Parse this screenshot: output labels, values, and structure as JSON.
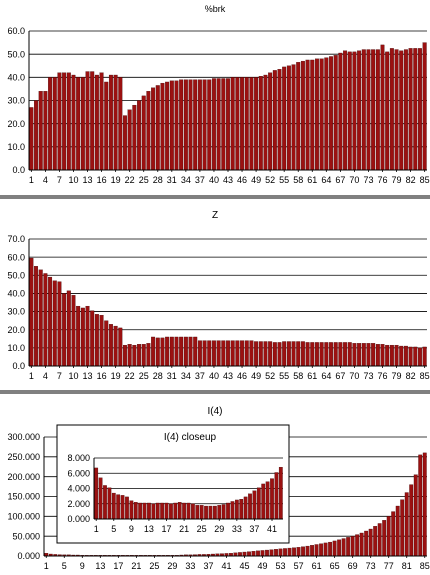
{
  "colors": {
    "bar": "#9b1111",
    "bar_edge": "#3a0000",
    "grid": "#000000",
    "frame": "#000000",
    "divider": "#000000"
  },
  "chart_data": [
    {
      "type": "bar",
      "title": "%brk",
      "ylim": [
        0,
        60
      ],
      "yticks": [
        "0.0",
        "10.0",
        "20.0",
        "30.0",
        "40.0",
        "50.0",
        "60.0"
      ],
      "xticks": [
        "1",
        "4",
        "7",
        "10",
        "13",
        "16",
        "19",
        "22",
        "25",
        "28",
        "31",
        "34",
        "37",
        "40",
        "43",
        "46",
        "49",
        "52",
        "55",
        "58",
        "61",
        "64",
        "67",
        "70",
        "73",
        "76",
        "79",
        "82",
        "85"
      ],
      "grid": true,
      "values": [
        27,
        30,
        34,
        34,
        40,
        40,
        42,
        42,
        42,
        41,
        40,
        40,
        42.5,
        42.5,
        41,
        42,
        38,
        41,
        41,
        40,
        23.5,
        26,
        28,
        30,
        32,
        34,
        35.5,
        36.5,
        37.5,
        38,
        38.5,
        38.5,
        39,
        39,
        39,
        39,
        39,
        39,
        39,
        39.5,
        39.5,
        39.5,
        39.5,
        40,
        40,
        40,
        40,
        40,
        40,
        40.5,
        41,
        42,
        43,
        43.5,
        44.5,
        45,
        45.5,
        46.5,
        47,
        47.5,
        47.5,
        48,
        48,
        48.5,
        49,
        49.5,
        50.5,
        51.5,
        51,
        51,
        51.5,
        52,
        52,
        52,
        52,
        54,
        51,
        52.5,
        52,
        51.5,
        52,
        52.5,
        52.5,
        52.5,
        55
      ]
    },
    {
      "type": "bar",
      "title": "Z",
      "ylim": [
        0,
        70
      ],
      "yticks": [
        "0.0",
        "10.0",
        "20.0",
        "30.0",
        "40.0",
        "50.0",
        "60.0",
        "70.0"
      ],
      "xticks": [
        "1",
        "4",
        "7",
        "10",
        "13",
        "16",
        "19",
        "22",
        "25",
        "28",
        "31",
        "34",
        "37",
        "40",
        "43",
        "46",
        "49",
        "52",
        "55",
        "58",
        "61",
        "64",
        "67",
        "70",
        "73",
        "76",
        "79",
        "82",
        "85"
      ],
      "grid": true,
      "values": [
        59.5,
        55,
        53,
        51,
        49,
        47,
        46.5,
        40,
        41.5,
        39,
        33,
        32,
        33,
        30.5,
        28.5,
        28,
        25,
        23,
        22,
        21,
        11.5,
        12,
        11.5,
        12,
        12,
        12.5,
        16,
        15.5,
        15.5,
        16,
        16,
        16,
        16,
        16,
        16,
        16,
        14,
        14,
        14,
        14,
        14,
        14,
        14,
        14,
        14,
        14,
        14,
        14,
        13.5,
        13.5,
        13.5,
        13.5,
        13,
        13,
        13.5,
        13.5,
        13.5,
        13.5,
        13.5,
        13,
        13,
        13,
        13,
        13,
        13,
        13,
        13,
        13,
        13,
        12.5,
        12.5,
        12.5,
        12.5,
        12.5,
        12,
        12,
        11.5,
        11.5,
        11.5,
        11,
        11,
        10.5,
        10.5,
        10,
        10.5
      ]
    },
    {
      "type": "bar",
      "title": "I(4)",
      "ylim": [
        0,
        300
      ],
      "yticks": [
        "0.000",
        "50.000",
        "100.000",
        "150.000",
        "200.000",
        "250.000",
        "300.000"
      ],
      "xticks": [
        "1",
        "5",
        "9",
        "13",
        "17",
        "21",
        "25",
        "29",
        "33",
        "37",
        "41",
        "45",
        "49",
        "53",
        "57",
        "61",
        "65",
        "69",
        "73",
        "77",
        "81",
        "85"
      ],
      "grid": true,
      "values": [
        7,
        5,
        4,
        3.5,
        3,
        3,
        2.5,
        2.5,
        2,
        2,
        2,
        2,
        2,
        2,
        2,
        2,
        2,
        2,
        2,
        2,
        2,
        2,
        2,
        2,
        2,
        2,
        2,
        2,
        2,
        2,
        2.5,
        3,
        3,
        3.5,
        4,
        4,
        4.5,
        5,
        5.5,
        6,
        6.5,
        7,
        8,
        9,
        10,
        11,
        12,
        13,
        14,
        15,
        16,
        17,
        18,
        19,
        20,
        21,
        22,
        23.5,
        25,
        27,
        29,
        31,
        33,
        35,
        38,
        41,
        44,
        47,
        50,
        54,
        58,
        63,
        68,
        75,
        82,
        90,
        100,
        112,
        126,
        142,
        160,
        180,
        205,
        255,
        260
      ]
    },
    {
      "type": "bar",
      "title": "I(4) closeup",
      "ylim": [
        0,
        8
      ],
      "yticks": [
        "0.000",
        "2.000",
        "4.000",
        "6.000",
        "8.000"
      ],
      "xticks": [
        "1",
        "5",
        "9",
        "13",
        "17",
        "21",
        "25",
        "29",
        "33",
        "37",
        "41"
      ],
      "grid": true,
      "values": [
        6.7,
        5.4,
        4.4,
        4.1,
        3.4,
        3.2,
        3.1,
        2.9,
        2.4,
        2.2,
        2.1,
        2.1,
        2.1,
        2.0,
        2.1,
        2.1,
        2.1,
        2.0,
        2.1,
        2.2,
        2.1,
        2.1,
        2.0,
        1.8,
        1.8,
        1.7,
        1.7,
        1.7,
        1.8,
        1.9,
        2.1,
        2.3,
        2.5,
        2.6,
        2.9,
        3.3,
        3.7,
        4.1,
        4.6,
        4.9,
        5.3,
        6.1,
        6.8
      ]
    }
  ]
}
